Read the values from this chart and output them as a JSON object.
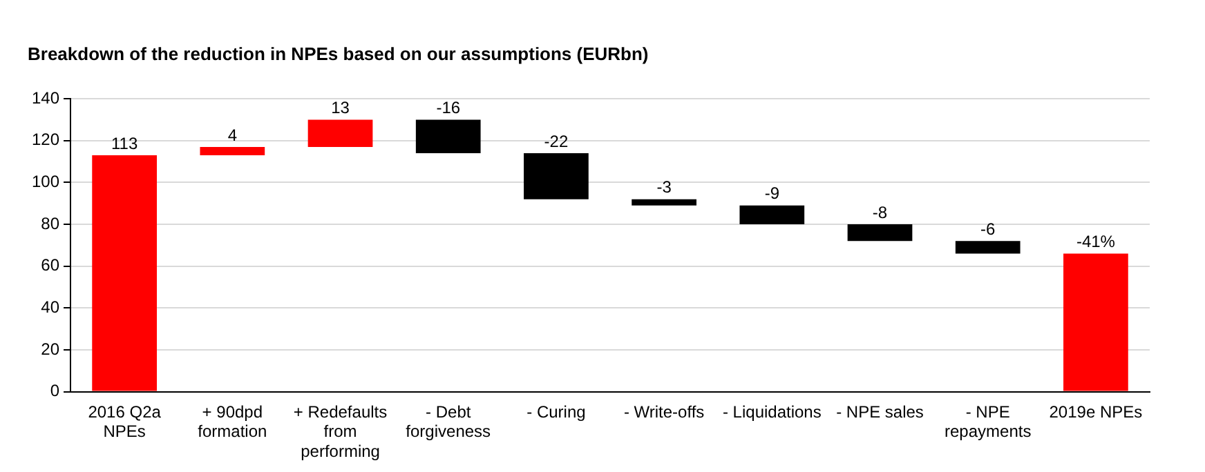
{
  "chart_data": {
    "type": "bar",
    "title": "Breakdown of the reduction in NPEs based on our assumptions (EURbn)",
    "categories": [
      "2016 Q2a NPEs",
      "+ 90dpd formation",
      "+ Redefaults from performing",
      "- Debt forgiveness",
      "- Curing",
      "- Write-offs",
      "- Liquidations",
      "- NPE sales",
      "- NPE repayments",
      "2019e NPEs"
    ],
    "base": [
      0,
      113,
      117,
      130,
      114,
      92,
      89,
      80,
      72,
      0
    ],
    "values": [
      113,
      4,
      13,
      -16,
      -22,
      -3,
      -9,
      -8,
      -6,
      66
    ],
    "colors": [
      "#ff0000",
      "#ff0000",
      "#ff0000",
      "#000000",
      "#000000",
      "#000000",
      "#000000",
      "#000000",
      "#000000",
      "#ff0000"
    ],
    "value_labels": [
      "113",
      "4",
      "13",
      "-16",
      "-22",
      "-3",
      "-9",
      "-8",
      "-6",
      null
    ],
    "annotations": [
      {
        "text": "-41%",
        "x": "2019e NPEs",
        "y": 66
      }
    ],
    "ylim": [
      0,
      140
    ],
    "yticks": [
      0,
      20,
      40,
      60,
      80,
      100,
      120,
      140
    ],
    "grid": "y",
    "legend": false
  }
}
